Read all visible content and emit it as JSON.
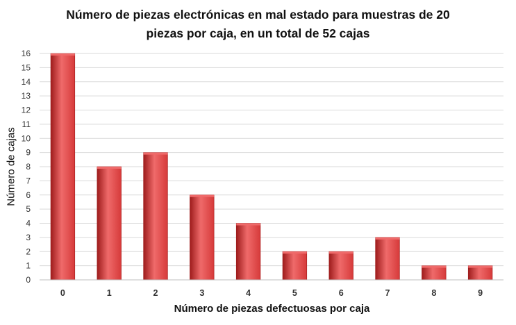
{
  "chart_data": {
    "type": "bar",
    "title_line1": "Número de piezas electrónicas en mal estado para muestras de 20",
    "title_line2": "piezas por caja, en un total de 52 cajas",
    "xlabel": "Número de piezas defectuosas por caja",
    "ylabel": "Número de cajas",
    "categories": [
      "0",
      "1",
      "2",
      "3",
      "4",
      "5",
      "6",
      "7",
      "8",
      "9"
    ],
    "values": [
      16,
      8,
      9,
      6,
      4,
      2,
      2,
      3,
      1,
      1
    ],
    "ylim": [
      0,
      16
    ],
    "ytick_step": 1,
    "grid": true,
    "legend": "none",
    "bar_color": "#d63a3a",
    "bar_color_dark": "#9e1c1c",
    "bar_color_light": "#ef6a6a"
  }
}
